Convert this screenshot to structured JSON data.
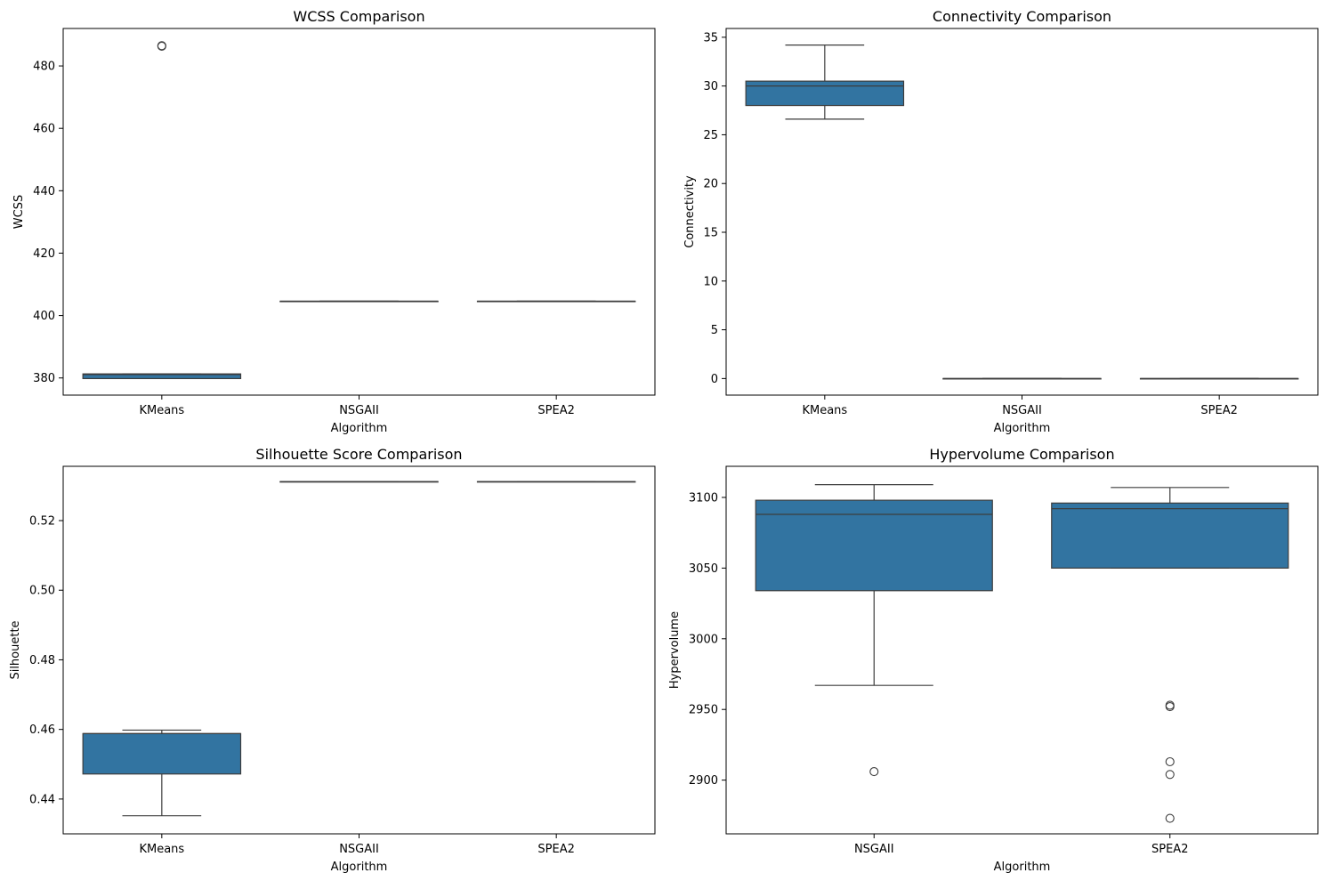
{
  "colors": {
    "box_fill": "#3274a1",
    "line": "#3d3d3d"
  },
  "chart_data": [
    {
      "type": "box",
      "title": "WCSS Comparison",
      "xlabel": "Algorithm",
      "ylabel": "WCSS",
      "ylim": [
        374.5,
        492
      ],
      "yticks": [
        380,
        400,
        420,
        440,
        460,
        480
      ],
      "categories": [
        "KMeans",
        "NSGAII",
        "SPEA2"
      ],
      "boxes": [
        {
          "category": "KMeans",
          "whislo": 379.8,
          "q1": 379.8,
          "med": 381.1,
          "q3": 381.3,
          "whishi": 381.3,
          "fliers": [
            486.3,
            486.5
          ]
        },
        {
          "category": "NSGAII",
          "whislo": 404.6,
          "q1": 404.6,
          "med": 404.6,
          "q3": 404.6,
          "whishi": 404.6,
          "fliers": []
        },
        {
          "category": "SPEA2",
          "whislo": 404.6,
          "q1": 404.6,
          "med": 404.6,
          "q3": 404.6,
          "whishi": 404.6,
          "fliers": []
        }
      ]
    },
    {
      "type": "box",
      "title": "Connectivity Comparison",
      "xlabel": "Algorithm",
      "ylabel": "Connectivity",
      "ylim": [
        -1.7,
        35.9
      ],
      "yticks": [
        0,
        5,
        10,
        15,
        20,
        25,
        30,
        35
      ],
      "categories": [
        "KMeans",
        "NSGAII",
        "SPEA2"
      ],
      "boxes": [
        {
          "category": "KMeans",
          "whislo": 26.6,
          "q1": 28.0,
          "med": 30.0,
          "q3": 30.5,
          "whishi": 34.2,
          "fliers": []
        },
        {
          "category": "NSGAII",
          "whislo": 0,
          "q1": 0,
          "med": 0,
          "q3": 0,
          "whishi": 0,
          "fliers": []
        },
        {
          "category": "SPEA2",
          "whislo": 0,
          "q1": 0,
          "med": 0,
          "q3": 0,
          "whishi": 0,
          "fliers": []
        }
      ]
    },
    {
      "type": "box",
      "title": "Silhouette Score Comparison",
      "xlabel": "Algorithm",
      "ylabel": "Silhouette",
      "ylim": [
        0.43,
        0.5356
      ],
      "yticks": [
        0.44,
        0.46,
        0.48,
        0.5,
        0.52
      ],
      "categories": [
        "KMeans",
        "NSGAII",
        "SPEA2"
      ],
      "boxes": [
        {
          "category": "KMeans",
          "whislo": 0.4352,
          "q1": 0.4472,
          "med": 0.4588,
          "q3": 0.4588,
          "whishi": 0.4598,
          "fliers": []
        },
        {
          "category": "NSGAII",
          "whislo": 0.5312,
          "q1": 0.5312,
          "med": 0.5312,
          "q3": 0.5312,
          "whishi": 0.5312,
          "fliers": []
        },
        {
          "category": "SPEA2",
          "whislo": 0.5312,
          "q1": 0.5312,
          "med": 0.5312,
          "q3": 0.5312,
          "whishi": 0.5312,
          "fliers": []
        }
      ]
    },
    {
      "type": "box",
      "title": "Hypervolume Comparison",
      "xlabel": "Algorithm",
      "ylabel": "Hypervolume",
      "ylim": [
        2862,
        3122
      ],
      "yticks": [
        2900,
        2950,
        3000,
        3050,
        3100
      ],
      "categories": [
        "NSGAII",
        "SPEA2"
      ],
      "boxes": [
        {
          "category": "NSGAII",
          "whislo": 2967,
          "q1": 3034,
          "med": 3088,
          "q3": 3098,
          "whishi": 3109,
          "fliers": [
            2906
          ]
        },
        {
          "category": "SPEA2",
          "whislo": 3050,
          "q1": 3050,
          "med": 3092,
          "q3": 3096,
          "whishi": 3107,
          "fliers": [
            2953,
            2952,
            2913,
            2904,
            2873
          ]
        }
      ]
    }
  ]
}
